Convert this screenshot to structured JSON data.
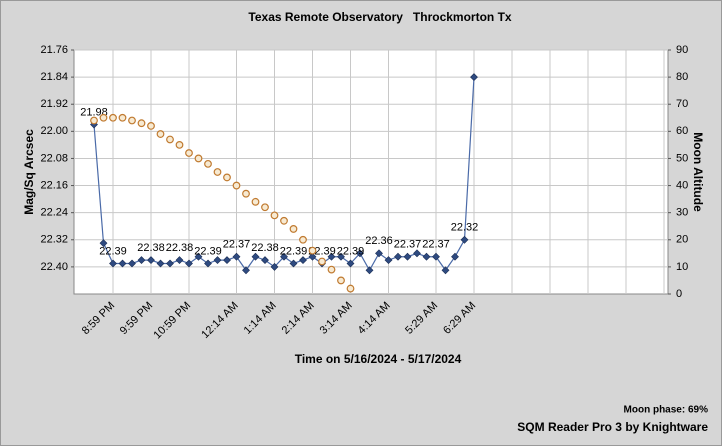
{
  "chart_data": {
    "type": "line",
    "title": "Texas Remote Observatory   Throckmorton Tx",
    "x_label": "Time on 5/16/2024 - 5/17/2024",
    "y_label": "Mag/Sq Arcsec",
    "y2_label": "Moon Altitude",
    "annotations": [
      "Moon phase: 69%",
      "SQM Reader Pro 3 by Knightware"
    ],
    "categories": [
      null,
      null,
      "8:59 PM",
      null,
      null,
      null,
      "9:59 PM",
      null,
      null,
      null,
      "10:59 PM",
      null,
      null,
      null,
      null,
      "12:14 AM",
      null,
      null,
      null,
      "1:14 AM",
      null,
      null,
      null,
      "2:14 AM",
      null,
      null,
      null,
      "3:14 AM",
      null,
      null,
      null,
      "4:14 AM",
      null,
      null,
      null,
      null,
      "5:29 AM",
      null,
      null,
      null,
      "6:29 AM"
    ],
    "series": [
      {
        "name": "SQM",
        "color": "#4a6aa8",
        "marker_color": "#2e4a80",
        "values": [
          21.98,
          22.33,
          22.39,
          22.39,
          22.39,
          22.38,
          22.38,
          22.39,
          22.39,
          22.38,
          22.39,
          22.37,
          22.39,
          22.38,
          22.38,
          22.37,
          22.41,
          22.37,
          22.38,
          22.4,
          22.37,
          22.39,
          22.38,
          22.37,
          22.39,
          22.37,
          22.37,
          22.39,
          22.36,
          22.41,
          22.36,
          22.38,
          22.37,
          22.37,
          22.36,
          22.37,
          22.37,
          22.41,
          22.37,
          22.32,
          21.84
        ],
        "value_labels": [
          "21.98",
          null,
          "22.39",
          null,
          null,
          null,
          "22.38",
          null,
          null,
          "22.38",
          null,
          null,
          "22.39",
          null,
          null,
          "22.37",
          null,
          null,
          "22.38",
          null,
          null,
          "22.39",
          null,
          null,
          "22.39",
          null,
          null,
          "22.39",
          null,
          null,
          "22.36",
          null,
          null,
          "22.37",
          null,
          null,
          "22.37",
          null,
          null,
          "22.32",
          null
        ]
      },
      {
        "name": "Moon Altitude",
        "axis": "y2",
        "color": "#c07a30",
        "fill": "#f7ead2",
        "values": [
          64,
          65,
          65,
          65,
          64,
          63,
          62,
          59,
          57,
          55,
          52,
          50,
          48,
          45,
          43,
          40,
          37,
          34,
          32,
          29,
          27,
          24,
          20,
          16,
          12,
          9,
          5,
          2,
          null,
          null,
          null,
          null,
          null,
          null,
          null,
          null,
          null,
          null,
          null,
          null,
          null
        ]
      }
    ],
    "ylim": [
      21.76,
      22.48
    ],
    "y_inverted": true,
    "yticks": [
      21.76,
      21.84,
      21.92,
      {
        "value": 22,
        "label": "22.00"
      },
      22.08,
      22.16,
      22.24,
      22.32,
      {
        "value": 22.4,
        "label": "22.40"
      }
    ],
    "y2lim": [
      0,
      90
    ],
    "y2ticks": [
      0,
      10,
      20,
      30,
      40,
      50,
      60,
      70,
      80,
      90
    ],
    "grid": true
  }
}
